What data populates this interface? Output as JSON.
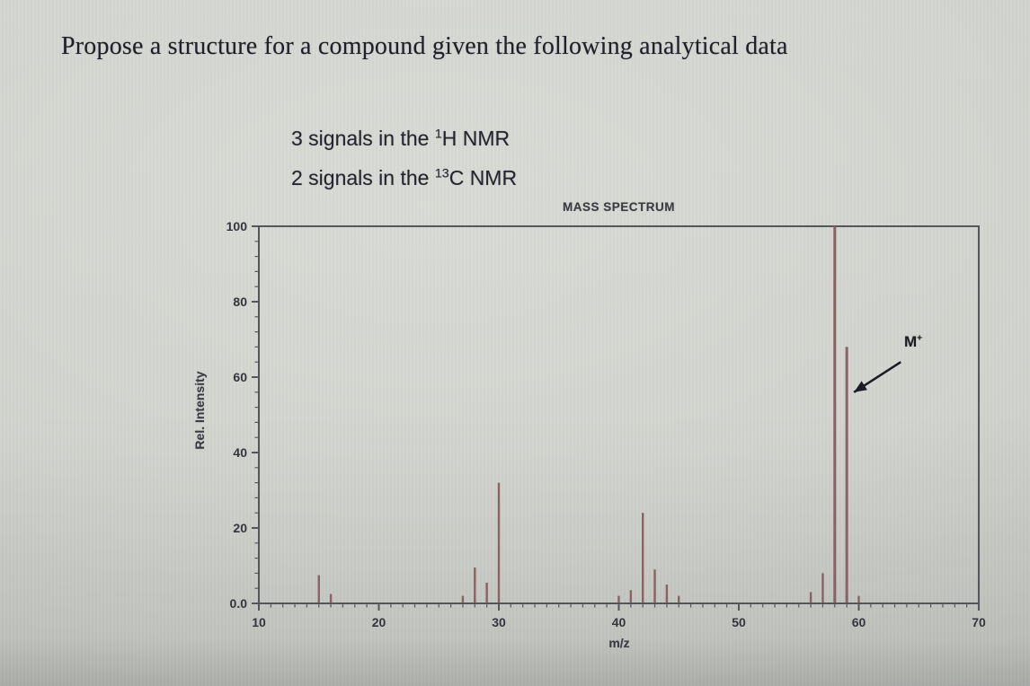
{
  "page": {
    "title": "Propose a structure for a compound given the following analytical data"
  },
  "nmr": {
    "lines": [
      {
        "prefix": "3 signals in the ",
        "isotope": "1",
        "nucleus": "H NMR"
      },
      {
        "prefix": "2 signals in the ",
        "isotope": "13",
        "nucleus": "C NMR"
      }
    ]
  },
  "chart_data": {
    "type": "bar",
    "title": "MASS SPECTRUM",
    "xlabel": "m/z",
    "ylabel": "Rel. Intensity",
    "xlim": [
      10,
      70
    ],
    "ylim": [
      0,
      100
    ],
    "x_major_ticks": [
      10,
      20,
      30,
      40,
      50,
      60,
      70
    ],
    "x_minor_step": 1,
    "y_major_ticks": [
      0,
      20,
      40,
      60,
      80,
      100
    ],
    "y_minor_step": 4,
    "y_zero_label": "0.0",
    "grid": false,
    "frame": true,
    "legend": "none",
    "peak_color": "#8a6262",
    "frame_color": "#55565c",
    "label_color": "#35353d",
    "peaks": [
      {
        "mz": 15,
        "intensity": 7.5
      },
      {
        "mz": 16,
        "intensity": 2.5
      },
      {
        "mz": 27,
        "intensity": 2
      },
      {
        "mz": 28,
        "intensity": 9.5
      },
      {
        "mz": 29,
        "intensity": 5.5
      },
      {
        "mz": 30,
        "intensity": 32
      },
      {
        "mz": 40,
        "intensity": 2
      },
      {
        "mz": 41,
        "intensity": 3.5
      },
      {
        "mz": 42,
        "intensity": 24
      },
      {
        "mz": 43,
        "intensity": 9
      },
      {
        "mz": 44,
        "intensity": 5
      },
      {
        "mz": 45,
        "intensity": 2
      },
      {
        "mz": 56,
        "intensity": 3
      },
      {
        "mz": 57,
        "intensity": 8
      },
      {
        "mz": 58,
        "intensity": 100
      },
      {
        "mz": 59,
        "intensity": 68
      },
      {
        "mz": 60,
        "intensity": 2
      }
    ],
    "annotation": {
      "label": "M",
      "sup": "+",
      "points_to_mz": 59,
      "arrow": {
        "from_mz": 63.5,
        "from_intensity": 64,
        "to_mz": 59.6,
        "to_intensity": 56
      }
    }
  }
}
